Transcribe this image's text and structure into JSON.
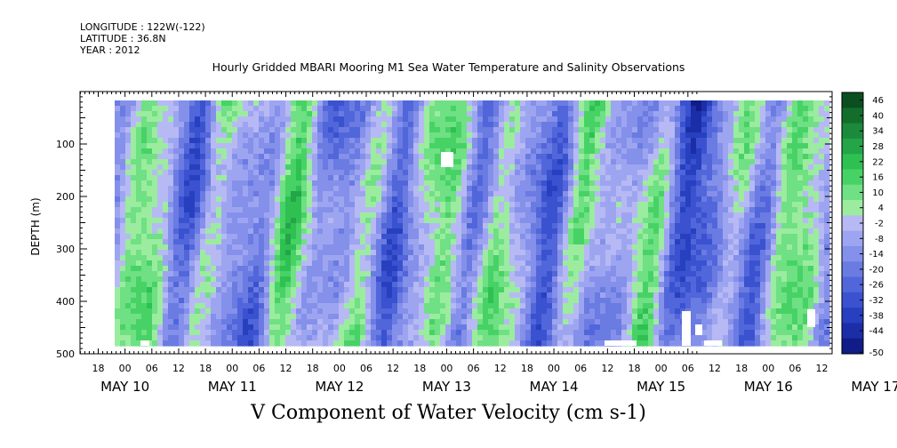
{
  "header": {
    "longitude_label": "LONGITUDE :",
    "longitude_value": "122W(-122)",
    "latitude_label": "LATITUDE :",
    "latitude_value": "36.8N",
    "year_label": "YEAR :",
    "year_value": "2012"
  },
  "chart_data": {
    "type": "heatmap",
    "title": "Hourly Gridded MBARI Mooring M1 Sea Water Temperature and Salinity Observations",
    "subtitle": "V Component of Water Velocity (cm s-1)",
    "xlabel": "",
    "ylabel": "DEPTH (m)",
    "y_axis": {
      "reversed": true,
      "ylim": [
        0,
        500
      ],
      "ticks": [
        "100",
        "200",
        "300",
        "400",
        "500"
      ]
    },
    "x_axis": {
      "hour_ticks": [
        "18",
        "00",
        "06",
        "12",
        "18",
        "00",
        "06",
        "12",
        "18",
        "00",
        "06",
        "12",
        "18",
        "00",
        "06",
        "12",
        "18",
        "00",
        "06",
        "12",
        "18",
        "00",
        "06",
        "12",
        "18",
        "00",
        "06",
        "12"
      ],
      "date_ticks": [
        "MAY 10",
        "MAY 11",
        "MAY 12",
        "MAY 13",
        "MAY 14",
        "MAY 15",
        "MAY 16",
        "MAY 17"
      ]
    },
    "colorbar": {
      "labels": [
        "46",
        "40",
        "34",
        "28",
        "22",
        "16",
        "10",
        "4",
        "-2",
        "-8",
        "-14",
        "-20",
        "-26",
        "-32",
        "-38",
        "-44",
        "-50"
      ],
      "colors": [
        "#0b4e1f",
        "#136e2c",
        "#1b8a3a",
        "#23a548",
        "#2fc052",
        "#47d266",
        "#6fe083",
        "#9bec9f",
        "#b7b9f4",
        "#9ea5f0",
        "#8490ea",
        "#6a7be2",
        "#5166da",
        "#3a52cf",
        "#2740bf",
        "#1b2ea8",
        "#101c88"
      ]
    },
    "grid": false,
    "data_description": "Depth-time field of north-south current velocity, values roughly between -30 and +30 cm/s; alternating positive (green) and negative (blue) bands slanting with time."
  }
}
